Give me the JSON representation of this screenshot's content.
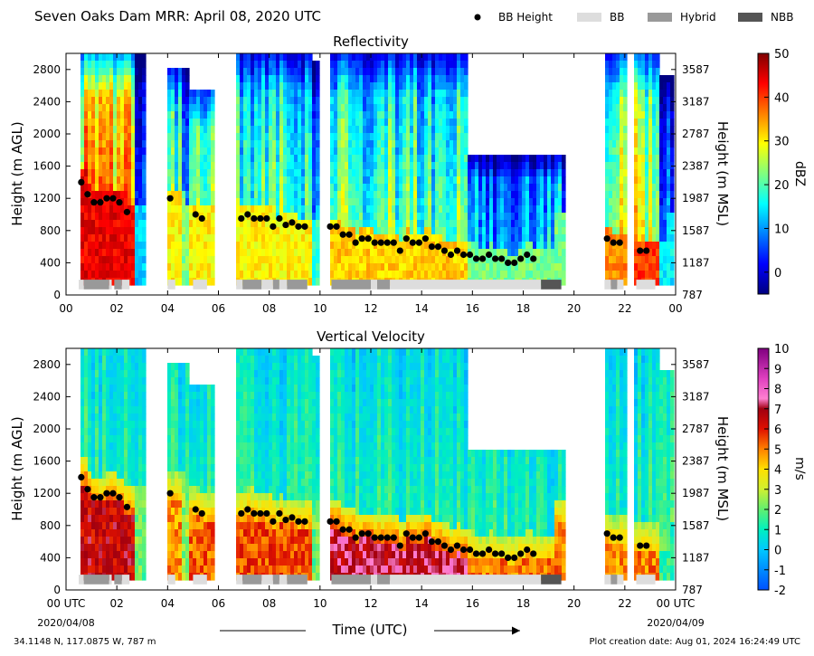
{
  "header": {
    "title": "Seven Oaks Dam MRR:  April 08, 2020 UTC"
  },
  "legend": {
    "position": "top-right",
    "items": [
      {
        "label": "BB Height",
        "kind": "marker",
        "color": "#000000"
      },
      {
        "label": "BB",
        "kind": "bar",
        "color": "#dddddd"
      },
      {
        "label": "Hybrid",
        "kind": "bar",
        "color": "#999999"
      },
      {
        "label": "NBB",
        "kind": "bar",
        "color": "#555555"
      }
    ]
  },
  "footer": {
    "location": "34.1148 N, 117.0875 W, 787 m",
    "created": "Plot creation date: Aug 01, 2024 16:24:49 UTC"
  },
  "x_axis": {
    "label": "Time (UTC)",
    "tick_labels": [
      "00",
      "02",
      "04",
      "06",
      "08",
      "10",
      "12",
      "14",
      "16",
      "18",
      "20",
      "22",
      "00"
    ],
    "bottom_tick_labels": [
      "00 UTC",
      "02",
      "04",
      "06",
      "08",
      "10",
      "12",
      "14",
      "16",
      "18",
      "20",
      "22",
      "00 UTC"
    ],
    "start_date": "2020/04/08",
    "end_date": "2020/04/09"
  },
  "chart_data": [
    {
      "type": "heatmap",
      "title": "Reflectivity",
      "xlabel": "",
      "ylabel": "Height (m AGL)",
      "ylabel_right": "Height (m MSL)",
      "xlim": [
        0,
        24
      ],
      "ylim": [
        0,
        3000
      ],
      "y_ticks": [
        0,
        400,
        800,
        1200,
        1600,
        2000,
        2400,
        2800
      ],
      "y_tick_labels": [
        "0",
        "400",
        "800",
        "1200",
        "1600",
        "2000",
        "2400",
        "2800"
      ],
      "y_right_tick_labels": [
        "787",
        "1187",
        "1587",
        "1987",
        "2387",
        "2787",
        "3187",
        "3587"
      ],
      "colorbar": {
        "label": "dBZ",
        "min": -5,
        "max": 50,
        "ticks": [
          0,
          10,
          20,
          30,
          40,
          50
        ],
        "tick_labels": [
          "0",
          "10",
          "20",
          "30",
          "40",
          "50"
        ],
        "colormap": "jet"
      }
    },
    {
      "type": "heatmap",
      "title": "Vertical Velocity",
      "xlabel": "Time (UTC)",
      "ylabel": "Height (m AGL)",
      "ylabel_right": "Height (m MSL)",
      "xlim": [
        0,
        24
      ],
      "ylim": [
        0,
        3000
      ],
      "y_ticks": [
        0,
        400,
        800,
        1200,
        1600,
        2000,
        2400,
        2800
      ],
      "y_tick_labels": [
        "0",
        "400",
        "800",
        "1200",
        "1600",
        "2000",
        "2400",
        "2800"
      ],
      "y_right_tick_labels": [
        "787",
        "1187",
        "1587",
        "1987",
        "2387",
        "2787",
        "3187",
        "3587"
      ],
      "colorbar": {
        "label": "m/s",
        "min": -2,
        "max": 10,
        "ticks": [
          -2,
          -1,
          0,
          1,
          2,
          3,
          4,
          5,
          6,
          7,
          8,
          9,
          10
        ],
        "tick_labels": [
          "-2",
          "-1",
          "0",
          "1",
          "2",
          "3",
          "4",
          "5",
          "6",
          "7",
          "8",
          "9",
          "10"
        ],
        "colormap": "hsv-like"
      }
    }
  ],
  "bb_height": {
    "x": [
      0.6,
      0.85,
      1.1,
      1.35,
      1.6,
      1.85,
      2.1,
      2.4,
      4.1,
      5.1,
      5.35,
      6.9,
      7.15,
      7.4,
      7.65,
      7.9,
      8.15,
      8.4,
      8.65,
      8.9,
      9.15,
      9.4,
      10.4,
      10.65,
      10.9,
      11.15,
      11.4,
      11.65,
      11.9,
      12.15,
      12.4,
      12.65,
      12.9,
      13.15,
      13.4,
      13.65,
      13.9,
      14.15,
      14.4,
      14.65,
      14.9,
      15.15,
      15.4,
      15.65,
      15.9,
      16.15,
      16.4,
      16.65,
      16.9,
      17.15,
      17.4,
      17.65,
      17.9,
      18.15,
      18.4,
      21.3,
      21.55,
      21.8,
      22.6,
      22.85
    ],
    "y": [
      1400,
      1250,
      1150,
      1150,
      1200,
      1200,
      1150,
      1030,
      1200,
      1000,
      950,
      950,
      1000,
      950,
      950,
      950,
      850,
      950,
      870,
      900,
      850,
      850,
      850,
      850,
      750,
      750,
      650,
      700,
      700,
      650,
      650,
      650,
      650,
      550,
      700,
      650,
      650,
      700,
      600,
      600,
      550,
      500,
      550,
      500,
      500,
      450,
      450,
      500,
      450,
      450,
      400,
      400,
      450,
      500,
      450,
      700,
      650,
      650,
      550,
      550
    ]
  },
  "bb_type_segments": [
    {
      "start": 0.5,
      "end": 0.7,
      "kind": "BB"
    },
    {
      "start": 0.7,
      "end": 1.7,
      "kind": "Hybrid"
    },
    {
      "start": 1.7,
      "end": 1.8,
      "kind": "BB"
    },
    {
      "start": 1.9,
      "end": 2.2,
      "kind": "Hybrid"
    },
    {
      "start": 2.2,
      "end": 2.5,
      "kind": "BB"
    },
    {
      "start": 4.0,
      "end": 4.3,
      "kind": "BB"
    },
    {
      "start": 5.0,
      "end": 5.55,
      "kind": "BB"
    },
    {
      "start": 6.7,
      "end": 6.95,
      "kind": "BB"
    },
    {
      "start": 6.95,
      "end": 7.7,
      "kind": "Hybrid"
    },
    {
      "start": 7.7,
      "end": 8.15,
      "kind": "BB"
    },
    {
      "start": 8.15,
      "end": 8.4,
      "kind": "Hybrid"
    },
    {
      "start": 8.4,
      "end": 8.7,
      "kind": "BB"
    },
    {
      "start": 8.7,
      "end": 9.5,
      "kind": "Hybrid"
    },
    {
      "start": 10.45,
      "end": 12.0,
      "kind": "Hybrid"
    },
    {
      "start": 12.0,
      "end": 12.25,
      "kind": "BB"
    },
    {
      "start": 12.25,
      "end": 12.75,
      "kind": "Hybrid"
    },
    {
      "start": 12.75,
      "end": 18.7,
      "kind": "BB"
    },
    {
      "start": 18.7,
      "end": 19.5,
      "kind": "NBB"
    },
    {
      "start": 21.2,
      "end": 21.45,
      "kind": "BB"
    },
    {
      "start": 21.45,
      "end": 21.7,
      "kind": "Hybrid"
    },
    {
      "start": 21.7,
      "end": 21.95,
      "kind": "BB"
    },
    {
      "start": 22.45,
      "end": 23.2,
      "kind": "BB"
    }
  ],
  "data_periods": [
    {
      "start": 0.45,
      "end": 2.6,
      "top": 3000,
      "bz": 34,
      "bv": 6.5
    },
    {
      "start": 2.6,
      "end": 3.05,
      "top": 3000,
      "bz": 3,
      "bv": 2
    },
    {
      "start": 3.9,
      "end": 4.5,
      "top": 2800,
      "bz": 20,
      "bv": 4.8
    },
    {
      "start": 4.5,
      "end": 4.8,
      "top": 2800,
      "bz": 13,
      "bv": 2.5
    },
    {
      "start": 4.8,
      "end": 5.7,
      "top": 2550,
      "bz": 20,
      "bv": 5.2
    },
    {
      "start": 6.6,
      "end": 9.6,
      "top": 3000,
      "bz": 20,
      "bv": 5.5
    },
    {
      "start": 9.6,
      "end": 9.95,
      "top": 2900,
      "bz": 8,
      "bv": 2
    },
    {
      "start": 10.3,
      "end": 15.8,
      "top": 3000,
      "bz": 22,
      "bv": 7
    },
    {
      "start": 15.8,
      "end": 19.6,
      "top": 1700,
      "bz": 12,
      "bv": 5
    },
    {
      "start": 21.1,
      "end": 22.05,
      "top": 3000,
      "bz": 26,
      "bv": 4.8
    },
    {
      "start": 22.35,
      "end": 23.35,
      "top": 3000,
      "bz": 30,
      "bv": 5
    },
    {
      "start": 23.35,
      "end": 23.85,
      "top": 2700,
      "bz": 5,
      "bv": 1.5
    }
  ]
}
